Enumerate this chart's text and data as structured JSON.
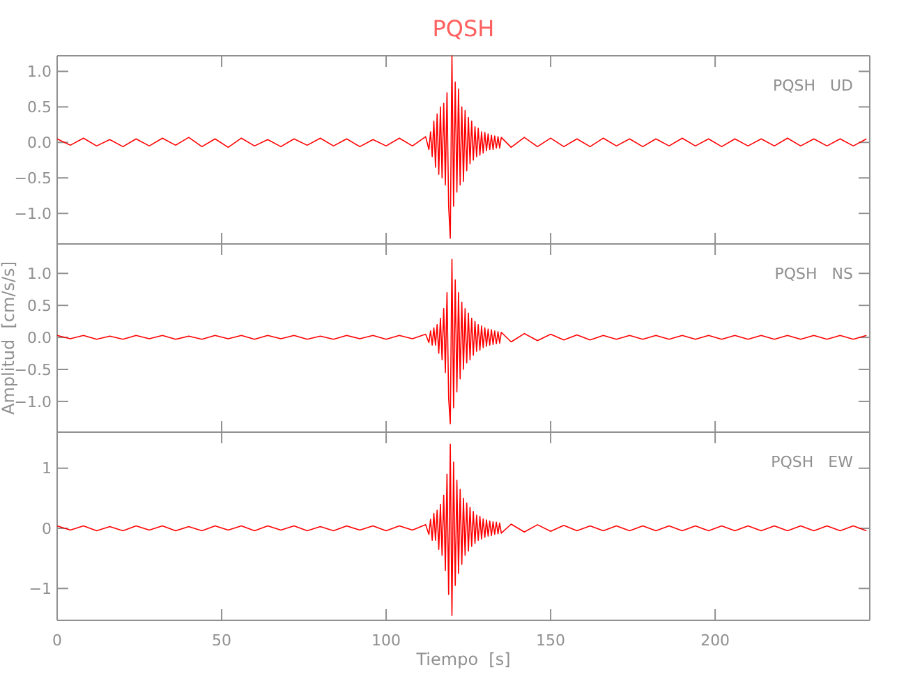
{
  "chart_data": [
    {
      "type": "line",
      "title": "PQSH",
      "annotations": [
        "PQSH   UD"
      ],
      "xlim": [
        0,
        247
      ],
      "xticks": [
        0,
        50,
        100,
        150,
        200
      ],
      "ylim": [
        -1.43,
        1.22
      ],
      "yticks": [
        {
          "value": 1,
          "label": "1.0"
        },
        0.5,
        {
          "value": 0,
          "label": "0.0"
        },
        {
          "value": -0.5,
          "label": "−0.5"
        },
        {
          "value": -1,
          "label": "−1.0"
        }
      ],
      "tick_labels": "y",
      "grid": false,
      "x": [
        0,
        4,
        8,
        12,
        16,
        20,
        24,
        28,
        32,
        36,
        40,
        44,
        48,
        52,
        56,
        60,
        64,
        68,
        72,
        76,
        80,
        84,
        88,
        92,
        96,
        100,
        104,
        108,
        112,
        113,
        113.5,
        114,
        114.5,
        115,
        115.5,
        116,
        116.5,
        117,
        117.5,
        118,
        118.5,
        119,
        119.5,
        120,
        120.5,
        121,
        121.5,
        122,
        122.5,
        123,
        123.5,
        124,
        124.5,
        125,
        125.5,
        126,
        126.5,
        127,
        127.5,
        128,
        128.5,
        129,
        129.5,
        130,
        130.5,
        131,
        131.5,
        132,
        132.5,
        133,
        133.5,
        134,
        134.5,
        135,
        138,
        142,
        146,
        150,
        154,
        158,
        162,
        166,
        170,
        174,
        178,
        182,
        186,
        190,
        194,
        198,
        202,
        206,
        210,
        214,
        218,
        222,
        226,
        230,
        234,
        238,
        242,
        246
      ],
      "series": [
        {
          "color": "#ff0000",
          "values": [
            0.05,
            -0.04,
            0.06,
            -0.05,
            0.04,
            -0.06,
            0.05,
            -0.05,
            0.06,
            -0.04,
            0.07,
            -0.06,
            0.05,
            -0.07,
            0.06,
            -0.05,
            0.04,
            -0.06,
            0.05,
            -0.04,
            0.06,
            -0.05,
            0.05,
            -0.06,
            0.04,
            -0.05,
            0.06,
            -0.05,
            0.08,
            -0.1,
            0.15,
            -0.2,
            0.3,
            -0.35,
            0.4,
            -0.45,
            0.5,
            -0.5,
            0.55,
            -0.6,
            0.7,
            -0.9,
            -1.35,
            1.22,
            -0.9,
            0.85,
            -0.7,
            0.75,
            -0.6,
            0.5,
            -0.55,
            0.45,
            -0.4,
            0.35,
            -0.3,
            0.3,
            -0.25,
            0.22,
            -0.2,
            0.2,
            -0.18,
            0.15,
            -0.15,
            0.14,
            -0.12,
            0.12,
            -0.1,
            0.1,
            -0.1,
            0.09,
            -0.08,
            0.08,
            -0.08,
            0.07,
            -0.07,
            0.07,
            -0.06,
            0.06,
            -0.06,
            0.05,
            -0.06,
            0.06,
            -0.05,
            0.05,
            -0.06,
            0.05,
            -0.05,
            0.06,
            -0.05,
            0.05,
            -0.06,
            0.05,
            -0.05,
            0.05,
            -0.05,
            0.06,
            -0.05,
            0.05,
            -0.05,
            0.05,
            -0.05,
            0.05
          ]
        }
      ]
    },
    {
      "type": "line",
      "ylabel": "Amplitud  [cm/s/s]",
      "annotations": [
        "PQSH   NS"
      ],
      "xlim": [
        0,
        247
      ],
      "xticks": [
        0,
        50,
        100,
        150,
        200
      ],
      "ylim": [
        -1.48,
        1.46
      ],
      "yticks": [
        {
          "value": 1,
          "label": "1.0"
        },
        0.5,
        {
          "value": 0,
          "label": "0.0"
        },
        {
          "value": -0.5,
          "label": "−0.5"
        },
        {
          "value": -1,
          "label": "−1.0"
        }
      ],
      "tick_labels": "y",
      "grid": false,
      "x": [
        0,
        4,
        8,
        12,
        16,
        20,
        24,
        28,
        32,
        36,
        40,
        44,
        48,
        52,
        56,
        60,
        64,
        68,
        72,
        76,
        80,
        84,
        88,
        92,
        96,
        100,
        104,
        108,
        112,
        113,
        113.5,
        114,
        114.5,
        115,
        115.5,
        116,
        116.5,
        117,
        117.5,
        118,
        118.5,
        119,
        119.5,
        120,
        120.5,
        121,
        121.5,
        122,
        122.5,
        123,
        123.5,
        124,
        124.5,
        125,
        125.5,
        126,
        126.5,
        127,
        127.5,
        128,
        128.5,
        129,
        129.5,
        130,
        130.5,
        131,
        131.5,
        132,
        132.5,
        133,
        133.5,
        134,
        134.5,
        135,
        138,
        142,
        146,
        150,
        154,
        158,
        162,
        166,
        170,
        174,
        178,
        182,
        186,
        190,
        194,
        198,
        202,
        206,
        210,
        214,
        218,
        222,
        226,
        230,
        234,
        238,
        242,
        246
      ],
      "series": [
        {
          "color": "#ff0000",
          "values": [
            0.03,
            -0.02,
            0.03,
            -0.03,
            0.02,
            -0.03,
            0.03,
            -0.02,
            0.03,
            -0.03,
            0.02,
            -0.03,
            0.03,
            -0.02,
            0.03,
            -0.03,
            0.03,
            -0.02,
            0.03,
            -0.03,
            0.02,
            -0.03,
            0.03,
            -0.02,
            0.03,
            -0.03,
            0.03,
            -0.02,
            0.05,
            -0.08,
            0.1,
            -0.12,
            0.15,
            -0.12,
            0.2,
            -0.25,
            0.3,
            -0.35,
            0.45,
            -0.55,
            0.7,
            -0.95,
            -1.35,
            1.22,
            -1.1,
            0.9,
            -0.85,
            0.7,
            -0.65,
            0.55,
            -0.5,
            0.45,
            -0.4,
            0.38,
            -0.35,
            0.3,
            -0.28,
            0.25,
            -0.22,
            0.2,
            -0.2,
            0.18,
            -0.16,
            0.15,
            -0.14,
            0.13,
            -0.12,
            0.12,
            -0.11,
            0.1,
            -0.1,
            0.09,
            -0.09,
            0.08,
            -0.07,
            0.06,
            -0.05,
            0.05,
            -0.04,
            0.04,
            -0.04,
            0.03,
            -0.03,
            0.03,
            -0.03,
            0.03,
            -0.03,
            0.03,
            -0.03,
            0.03,
            -0.03,
            0.03,
            -0.03,
            0.03,
            -0.03,
            0.03,
            -0.03,
            0.03,
            -0.03,
            0.03,
            -0.03,
            0.03
          ]
        }
      ]
    },
    {
      "type": "line",
      "xlabel": "Tiempo  [s]",
      "annotations": [
        "PQSH   EW"
      ],
      "xlim": [
        0,
        247
      ],
      "xticks": [
        0,
        50,
        100,
        150,
        200
      ],
      "ylim": [
        -1.53,
        1.6
      ],
      "yticks": [
        1,
        0,
        {
          "value": -1,
          "label": "−1"
        }
      ],
      "grid": false,
      "x": [
        0,
        4,
        8,
        12,
        16,
        20,
        24,
        28,
        32,
        36,
        40,
        44,
        48,
        52,
        56,
        60,
        64,
        68,
        72,
        76,
        80,
        84,
        88,
        92,
        96,
        100,
        104,
        108,
        112,
        113,
        113.5,
        114,
        114.5,
        115,
        115.5,
        116,
        116.5,
        117,
        117.5,
        118,
        118.5,
        119,
        119.5,
        120,
        120.5,
        121,
        121.5,
        122,
        122.5,
        123,
        123.5,
        124,
        124.5,
        125,
        125.5,
        126,
        126.5,
        127,
        127.5,
        128,
        128.5,
        129,
        129.5,
        130,
        130.5,
        131,
        131.5,
        132,
        132.5,
        133,
        133.5,
        134,
        134.5,
        135,
        138,
        142,
        146,
        150,
        154,
        158,
        162,
        166,
        170,
        174,
        178,
        182,
        186,
        190,
        194,
        198,
        202,
        206,
        210,
        214,
        218,
        222,
        226,
        230,
        234,
        238,
        242,
        246
      ],
      "series": [
        {
          "color": "#ff0000",
          "values": [
            0.04,
            -0.03,
            0.04,
            -0.04,
            0.03,
            -0.04,
            0.04,
            -0.03,
            0.04,
            -0.04,
            0.03,
            -0.04,
            0.04,
            -0.03,
            0.04,
            -0.04,
            0.04,
            -0.03,
            0.04,
            -0.04,
            0.03,
            -0.04,
            0.04,
            -0.03,
            0.04,
            -0.04,
            0.04,
            -0.03,
            0.06,
            -0.1,
            0.15,
            -0.2,
            0.25,
            -0.2,
            0.3,
            -0.35,
            0.4,
            -0.45,
            0.55,
            -0.7,
            0.9,
            -1.1,
            1.4,
            -1.45,
            1.1,
            -0.95,
            0.8,
            -0.75,
            0.65,
            -0.6,
            0.5,
            -0.45,
            0.42,
            -0.38,
            0.35,
            -0.3,
            0.28,
            -0.25,
            0.22,
            -0.2,
            0.2,
            -0.18,
            0.16,
            -0.15,
            0.14,
            -0.13,
            0.12,
            -0.12,
            0.11,
            -0.1,
            0.1,
            -0.09,
            0.09,
            -0.08,
            0.07,
            -0.06,
            0.06,
            -0.05,
            0.05,
            -0.04,
            0.04,
            -0.04,
            0.04,
            -0.04,
            0.04,
            -0.04,
            0.04,
            -0.04,
            0.04,
            -0.04,
            0.04,
            -0.04,
            0.04,
            -0.04,
            0.04,
            -0.04,
            0.04,
            -0.04,
            0.04,
            -0.04,
            0.04,
            -0.04
          ]
        }
      ]
    }
  ]
}
